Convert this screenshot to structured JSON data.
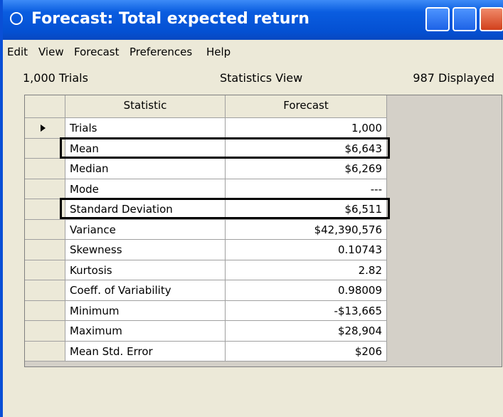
{
  "window": {
    "title": "Forecast: Total expected return"
  },
  "menu": [
    "Edit",
    "View",
    "Forecast",
    "Preferences",
    "Help"
  ],
  "status": {
    "left": "1,000 Trials",
    "center": "Statistics View",
    "right": "987 Displayed"
  },
  "table": {
    "headers": [
      "Statistic",
      "Forecast"
    ],
    "rows": [
      [
        "Trials",
        "1,000"
      ],
      [
        "Mean",
        "$6,643"
      ],
      [
        "Median",
        "$6,269"
      ],
      [
        "Mode",
        "---"
      ],
      [
        "Standard Deviation",
        "$6,511"
      ],
      [
        "Variance",
        "$42,390,576"
      ],
      [
        "Skewness",
        "0.10743"
      ],
      [
        "Kurtosis",
        "2.82"
      ],
      [
        "Coeff. of Variability",
        "0.98009"
      ],
      [
        "Minimum",
        "-$13,665"
      ],
      [
        "Maximum",
        "$28,904"
      ],
      [
        "Mean Std. Error",
        "$206"
      ]
    ]
  }
}
